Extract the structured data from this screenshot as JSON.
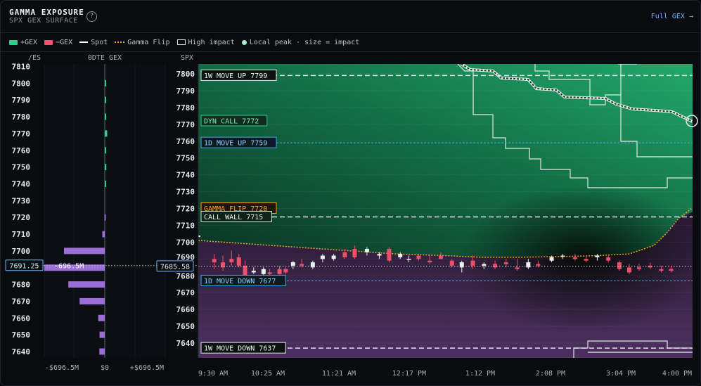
{
  "header": {
    "title": "GAMMA EXPOSURE",
    "subtitle": "SPX GEX SURFACE",
    "help_icon": "question-circle-icon",
    "full_gex_label": "Full GEX",
    "full_gex_icon": "arrow-right-icon"
  },
  "legend": [
    {
      "label": "+GEX",
      "kind": "box",
      "color": "#2fd18a"
    },
    {
      "label": "−GEX",
      "kind": "box",
      "color": "#f2546e"
    },
    {
      "label": "Spot",
      "kind": "line",
      "color": "#ffffff"
    },
    {
      "label": "Gamma Flip",
      "kind": "dotted",
      "color": "#f5a623"
    },
    {
      "label": "High impact",
      "kind": "outline",
      "color": "#cfe9d8"
    },
    {
      "label": "Local peak · size = impact",
      "kind": "dot",
      "color": "#a8f0cd"
    }
  ],
  "colors": {
    "positive": "#2fd18a",
    "negative": "#f2546e",
    "bar_purple": "#9b6fd6",
    "flip": "#f5a623",
    "move_line": "#45a8e8"
  },
  "chart_data": [
    {
      "type": "bar",
      "orientation": "horizontal",
      "left_axis_label": "/ES",
      "title": "0DTE GEX",
      "y_ticks": [
        7810,
        7800,
        7790,
        7780,
        7770,
        7760,
        7750,
        7740,
        7730,
        7720,
        7710,
        7700,
        7690,
        7680,
        7670,
        7660,
        7650,
        7640
      ],
      "ylim": [
        7636,
        7812
      ],
      "xlim": [
        -696.5,
        696.5
      ],
      "x_ticks": [
        "-$696.5M",
        "$0",
        "+$696.5M"
      ],
      "bars": [
        {
          "strike": 7800,
          "value": 5,
          "color": "green"
        },
        {
          "strike": 7790,
          "value": 6,
          "color": "green"
        },
        {
          "strike": 7780,
          "value": 8,
          "color": "green"
        },
        {
          "strike": 7770,
          "value": 28,
          "color": "green"
        },
        {
          "strike": 7760,
          "value": 8,
          "color": "green"
        },
        {
          "strike": 7750,
          "value": 18,
          "color": "green"
        },
        {
          "strike": 7740,
          "value": 6,
          "color": "green"
        },
        {
          "strike": 7720,
          "value": -4,
          "color": "purple"
        },
        {
          "strike": 7710,
          "value": -28,
          "color": "purple"
        },
        {
          "strike": 7700,
          "value": -470,
          "color": "purple"
        },
        {
          "strike": 7690,
          "value": -696.5,
          "color": "purple"
        },
        {
          "strike": 7680,
          "value": -420,
          "color": "purple"
        },
        {
          "strike": 7670,
          "value": -290,
          "color": "purple"
        },
        {
          "strike": 7660,
          "value": -75,
          "color": "purple"
        },
        {
          "strike": 7650,
          "value": -60,
          "color": "purple"
        },
        {
          "strike": 7640,
          "value": -62,
          "color": "purple"
        }
      ],
      "spot_label": "7691.25",
      "spot_value": 7691.25,
      "bar_value_label": "-696.5M"
    },
    {
      "type": "candlestick",
      "y_axis_label": "SPX",
      "y_ticks": [
        7800,
        7790,
        7780,
        7770,
        7760,
        7750,
        7740,
        7730,
        7720,
        7710,
        7700,
        7690,
        7680,
        7670,
        7660,
        7650,
        7640
      ],
      "ylim": [
        7634,
        7806
      ],
      "x_ticks": [
        "9:30 AM",
        "10:25 AM",
        "11:21 AM",
        "12:17 PM",
        "1:12 PM",
        "2:08 PM",
        "3:04 PM",
        "4:00 PM"
      ],
      "x_range_minutes": [
        0,
        390
      ],
      "spot_label": "7685.58",
      "spot_value": 7685.58,
      "levels": [
        {
          "label": "1W MOVE UP 7799",
          "value": 7799,
          "style": "dashed-white",
          "color": "#e8e8e8"
        },
        {
          "label": "DYN CALL 7772",
          "value": 7772,
          "style": "label-only",
          "color": "#2fd18a"
        },
        {
          "label": "1D MOVE UP 7759",
          "value": 7759,
          "style": "dashed-blue",
          "color": "#45a8e8"
        },
        {
          "label": "GAMMA FLIP 7720",
          "value": 7720,
          "style": "label-only",
          "color": "#f5a623"
        },
        {
          "label": "CALL WALL 7715",
          "value": 7715,
          "style": "dashed-white",
          "color": "#2fd18a"
        },
        {
          "label": "1D MOVE DOWN 7677",
          "value": 7677,
          "style": "dashed-blue",
          "color": "#45a8e8"
        },
        {
          "label": "1W MOVE DOWN 7637",
          "value": 7637,
          "style": "dashed-white",
          "color": "#e8e8e8"
        }
      ],
      "gamma_flip_curve": [
        [
          0,
          7701
        ],
        [
          40,
          7699
        ],
        [
          80,
          7697
        ],
        [
          120,
          7695
        ],
        [
          160,
          7693
        ],
        [
          200,
          7692
        ],
        [
          230,
          7691
        ],
        [
          260,
          7691
        ],
        [
          300,
          7691.5
        ],
        [
          325,
          7692
        ],
        [
          350,
          7693
        ],
        [
          370,
          7698
        ],
        [
          380,
          7705
        ],
        [
          390,
          7714
        ]
      ],
      "candles": [
        [
          0,
          7703,
          7708,
          7696,
          7704
        ],
        [
          13,
          7690,
          7693,
          7684,
          7688
        ],
        [
          20,
          7688,
          7692,
          7683,
          7685
        ],
        [
          27,
          7690,
          7695,
          7686,
          7688
        ],
        [
          33,
          7691,
          7693,
          7685,
          7686
        ],
        [
          38,
          7686,
          7689,
          7679,
          7680
        ],
        [
          45,
          7682,
          7685,
          7681,
          7683
        ],
        [
          53,
          7681,
          7685,
          7680,
          7684
        ],
        [
          58,
          7682,
          7684,
          7680,
          7681
        ],
        [
          66,
          7684,
          7686,
          7680,
          7681
        ],
        [
          71,
          7684,
          7685,
          7681,
          7682
        ],
        [
          77,
          7686,
          7689,
          7684,
          7688
        ],
        [
          84,
          7687,
          7690,
          7685,
          7686
        ],
        [
          93,
          7685,
          7689,
          7684,
          7688
        ],
        [
          101,
          7690,
          7693,
          7688,
          7692
        ],
        [
          110,
          7690,
          7693,
          7689,
          7692
        ],
        [
          119,
          7694,
          7696,
          7690,
          7691
        ],
        [
          127,
          7696,
          7698,
          7690,
          7691
        ],
        [
          137,
          7694,
          7697,
          7692,
          7696
        ],
        [
          147,
          7692,
          7694,
          7690,
          7693
        ],
        [
          155,
          7696,
          7697,
          7688,
          7689
        ],
        [
          164,
          7691,
          7694,
          7690,
          7693
        ],
        [
          171,
          7690,
          7692,
          7688,
          7690
        ],
        [
          179,
          7692,
          7693,
          7689,
          7690
        ],
        [
          188,
          7689,
          7692,
          7687,
          7688
        ],
        [
          197,
          7692,
          7694,
          7690,
          7690
        ],
        [
          206,
          7689,
          7690,
          7685,
          7686
        ],
        [
          214,
          7685,
          7689,
          7682,
          7688
        ],
        [
          223,
          7689,
          7692,
          7684,
          7686
        ],
        [
          232,
          7686,
          7688,
          7684,
          7687
        ],
        [
          241,
          7687,
          7689,
          7684,
          7685
        ],
        [
          250,
          7688,
          7690,
          7685,
          7687
        ],
        [
          259,
          7685,
          7690,
          7683,
          7684
        ],
        [
          268,
          7685,
          7690,
          7684,
          7688
        ],
        [
          276,
          7687,
          7689,
          7685,
          7686
        ],
        [
          287,
          7689,
          7692,
          7688,
          7691
        ],
        [
          296,
          7692,
          7693,
          7690,
          7692
        ],
        [
          306,
          7691,
          7693,
          7689,
          7690
        ],
        [
          315,
          7690,
          7692,
          7688,
          7689
        ],
        [
          324,
          7691,
          7693,
          7689,
          7692
        ],
        [
          333,
          7691,
          7692,
          7688,
          7689
        ],
        [
          342,
          7688,
          7689,
          7683,
          7684
        ],
        [
          350,
          7685,
          7687,
          7681,
          7682
        ],
        [
          358,
          7685,
          7687,
          7683,
          7684
        ],
        [
          367,
          7686,
          7688,
          7684,
          7685
        ],
        [
          376,
          7684,
          7686,
          7682,
          7683
        ],
        [
          384,
          7684,
          7686,
          7682,
          7683
        ]
      ]
    }
  ]
}
